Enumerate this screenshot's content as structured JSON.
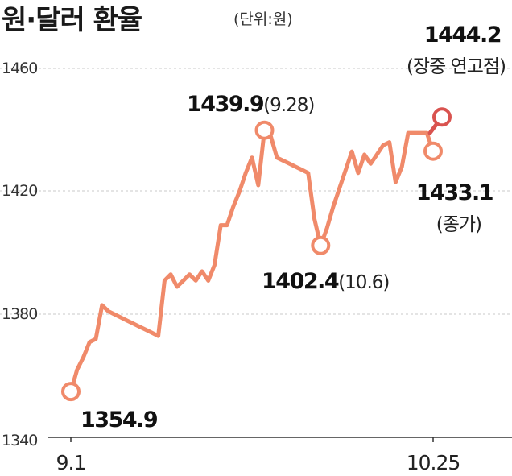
{
  "title": "원·달러 환율",
  "unit_label": "(단위:원)",
  "colors": {
    "line": "#f08a6a",
    "highlight": "#d9534f",
    "grid": "#c8c8c8",
    "axis": "#333333"
  },
  "chart_data": {
    "type": "line",
    "title": "원·달러 환율",
    "ylim": [
      1340,
      1470
    ],
    "yticks": [
      1340,
      1380,
      1420,
      1460
    ],
    "ytick_labels": [
      "1340",
      "1380",
      "1420",
      "1460"
    ],
    "xtick_labels": [
      "9.1",
      "10.25"
    ],
    "grid": true,
    "series": [
      {
        "values": [
          1354.9,
          1362,
          1366,
          1371,
          1372,
          1383,
          1381,
          1380,
          1379,
          1378,
          1377,
          1376,
          1375,
          1374,
          1373,
          1391,
          1393,
          1389,
          1391,
          1393,
          1391,
          1394,
          1391,
          1396,
          1409,
          1409,
          1415,
          1420,
          1426,
          1431,
          1422,
          1439.9,
          1438,
          1431,
          1430,
          1429,
          1428,
          1427,
          1426,
          1411,
          1402.4,
          1408,
          1415,
          1421,
          1427,
          1433,
          1426,
          1432,
          1429,
          1432,
          1435,
          1436,
          1423,
          1428,
          1439,
          1439,
          1439,
          1439,
          1433.1
        ]
      }
    ],
    "highlight": {
      "from": 1439,
      "value": 1444.2
    },
    "annotations": {
      "start_value": "1354.9",
      "peak_value": "1439.9",
      "peak_date": "(9.28)",
      "low_value": "1402.4",
      "low_date": "(10.6)",
      "intraday_value": "1444.2",
      "intraday_note": "(장중 연고점)",
      "close_value": "1433.1",
      "close_note": "(종가)"
    }
  }
}
